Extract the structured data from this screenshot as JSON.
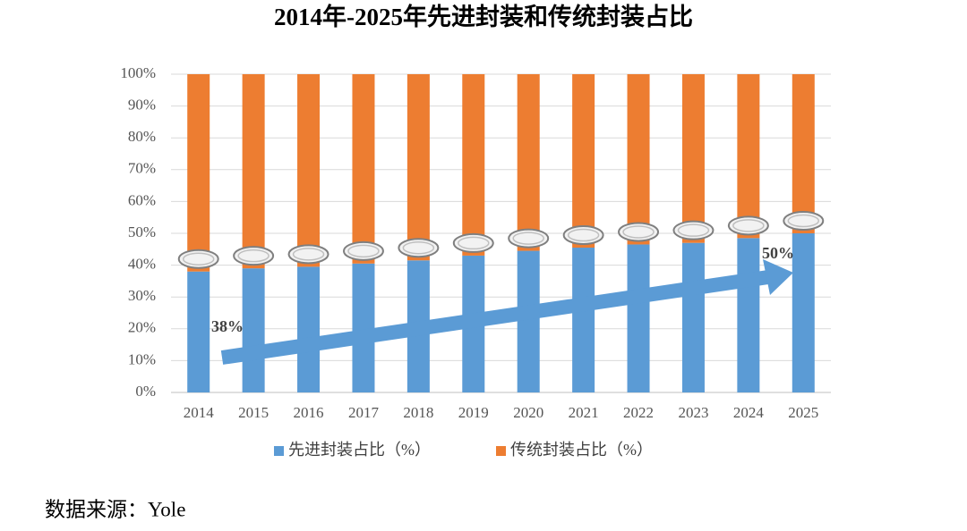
{
  "chart_data": {
    "type": "stacked_bar",
    "title": "2014年-2025年先进封装和传统封装占比",
    "categories": [
      "2014",
      "2015",
      "2016",
      "2017",
      "2018",
      "2019",
      "2020",
      "2021",
      "2022",
      "2023",
      "2024",
      "2025"
    ],
    "series": [
      {
        "name": "先进封装占比（%）",
        "color": "#5b9bd5",
        "values": [
          38,
          39,
          39.5,
          40.5,
          41.5,
          43,
          44.5,
          45.5,
          46.5,
          47,
          48.5,
          50
        ]
      },
      {
        "name": "传统封装占比（%）",
        "color": "#ed7d31",
        "values": [
          62,
          61,
          60.5,
          59.5,
          58.5,
          57,
          55.5,
          54.5,
          53.5,
          53,
          51.5,
          50
        ]
      }
    ],
    "ylim": [
      0,
      100
    ],
    "yticks": [
      {
        "value": 0,
        "label": "0%"
      },
      {
        "value": 10,
        "label": "10%"
      },
      {
        "value": 20,
        "label": "20%"
      },
      {
        "value": 30,
        "label": "30%"
      },
      {
        "value": 40,
        "label": "40%"
      },
      {
        "value": 50,
        "label": "50%"
      },
      {
        "value": 60,
        "label": "60%"
      },
      {
        "value": 70,
        "label": "70%"
      },
      {
        "value": 80,
        "label": "80%"
      },
      {
        "value": 90,
        "label": "90%"
      },
      {
        "value": 100,
        "label": "100%"
      }
    ],
    "grid": true,
    "annotations": [
      "38%",
      "50%"
    ],
    "source": "数据来源：Yole"
  }
}
